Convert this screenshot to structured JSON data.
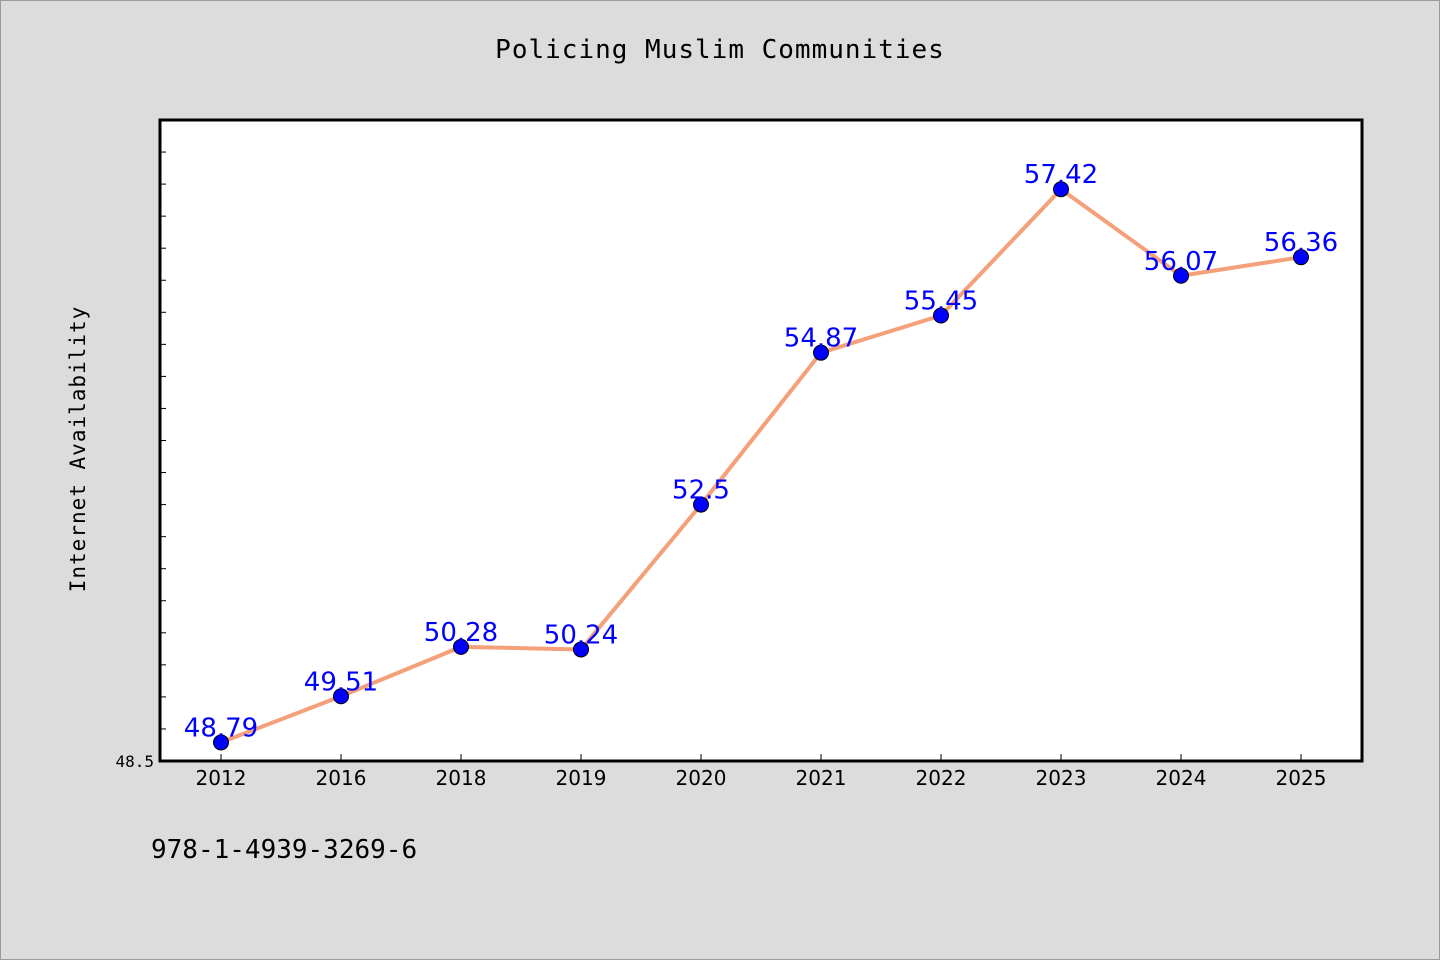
{
  "chart_data": {
    "type": "line",
    "title": "Policing Muslim Communities",
    "xlabel": "",
    "ylabel": "Internet Availability",
    "categories": [
      "2012",
      "2016",
      "2018",
      "2019",
      "2020",
      "2021",
      "2022",
      "2023",
      "2024",
      "2025"
    ],
    "values": [
      48.79,
      49.51,
      50.28,
      50.24,
      52.5,
      54.87,
      55.45,
      57.42,
      56.07,
      56.36
    ],
    "data_labels": [
      "48.79",
      "49.51",
      "50.28",
      "50.24",
      "52.5",
      "54.87",
      "55.45",
      "57.42",
      "56.07",
      "56.36"
    ],
    "y_tick_label": "48.5",
    "ylim": [
      48.5,
      58.5
    ],
    "grid": false,
    "legend": "none",
    "colors": {
      "line": "#f4a07a",
      "marker": "#0000ff",
      "data_label": "#0000ff",
      "background": "#dcdcdc",
      "plot_area": "#ffffff"
    }
  },
  "footer": {
    "isbn": "978-1-4939-3269-6"
  }
}
